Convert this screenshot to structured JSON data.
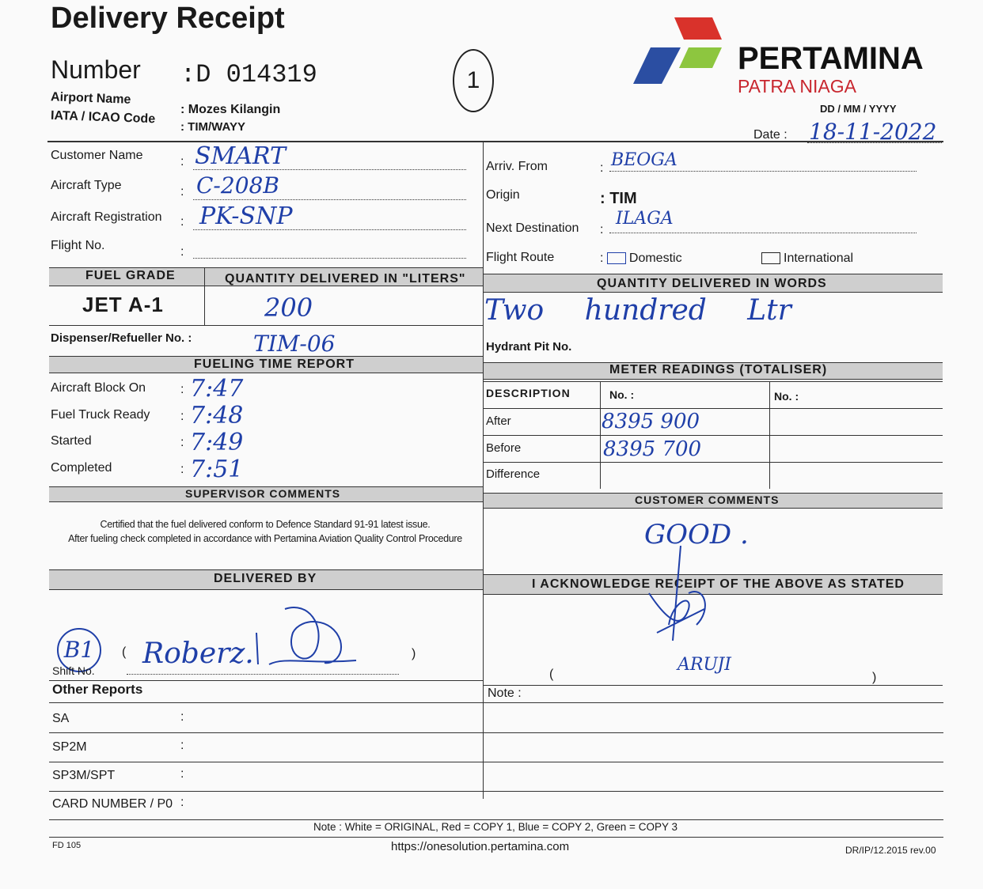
{
  "header": {
    "title": "Delivery Receipt",
    "number_label": "Number",
    "number_value": ":D 014319",
    "circled_mark": "1",
    "airport_label": "Airport Name",
    "airport_value": ": Mozes Kilangin",
    "iata_label": "IATA / ICAO Code",
    "iata_value": ": TIM/WAYY",
    "logo_text": "PERTAMINA",
    "logo_sub": "PATRA NIAGA",
    "logo_colors": [
      "#d9322b",
      "#2b4ea2",
      "#8dc63f"
    ],
    "date_format": "DD  /  MM  /  YYYY",
    "date_label": "Date  :",
    "date_value": "18-11-2022"
  },
  "left_info": [
    {
      "label": "Customer Name",
      "value": "SMART"
    },
    {
      "label": "Aircraft Type",
      "value": "C-208B"
    },
    {
      "label": "Aircraft  Registration",
      "value": "PK-SNP"
    },
    {
      "label": "Flight No.",
      "value": ""
    }
  ],
  "right_info": [
    {
      "label": "Arriv. From",
      "value": "BEOGA"
    },
    {
      "label": "Origin",
      "value": "TIM"
    },
    {
      "label": "Next Destination",
      "value": "ILAGA"
    },
    {
      "label": "Flight  Route",
      "domestic": "Domestic",
      "international": "International",
      "selected": "Domestic"
    }
  ],
  "fuel": {
    "grade_header": "FUEL GRADE",
    "qty_header": "QUANTITY DELIVERED IN \"LITERS\"",
    "words_header": "QUANTITY DELIVERED IN WORDS",
    "grade": "JET A-1",
    "qty": "200",
    "words": "Two  hundred  Ltr",
    "dispenser_label": "Dispenser/Refueller No.  :",
    "dispenser_value": "TIM-06",
    "hydrant_label": "Hydrant Pit No."
  },
  "time_report": {
    "title": "FUELING TIME REPORT",
    "rows": [
      {
        "label": "Aircraft Block On",
        "value": "7:47"
      },
      {
        "label": "Fuel Truck Ready",
        "value": "7:48"
      },
      {
        "label": "Started",
        "value": "7:49"
      },
      {
        "label": "Completed",
        "value": "7:51"
      }
    ]
  },
  "meter": {
    "title": "METER READINGS (TOTALISER)",
    "headers": [
      "DESCRIPTION",
      "No. :",
      "No. :"
    ],
    "rows": [
      {
        "label": "After",
        "value": "8395 900"
      },
      {
        "label": "Before",
        "value": "8395 700"
      },
      {
        "label": "Difference",
        "value": ""
      }
    ]
  },
  "comments": {
    "supervisor_title": "SUPERVISOR  COMMENTS",
    "supervisor_line1": "Certified that the fuel delivered conform to Defence Standard 91-91 latest issue.",
    "supervisor_line2": "After fueling check completed in accordance with Pertamina Aviation Quality Control Procedure",
    "customer_title": "CUSTOMER  COMMENTS",
    "customer_value": "GOOD ."
  },
  "signatures": {
    "delivered_title": "DELIVERED  BY",
    "ack_title": "I ACKNOWLEDGE RECEIPT OF THE ABOVE AS STATED",
    "shift_label": "Shift No.",
    "shift_value": "B1",
    "deliverer_name": "Roberz.",
    "ack_name": "ARUJI",
    "open_paren": "(",
    "close_paren": ")"
  },
  "other_reports": {
    "title": "Other Reports",
    "note_label": "Note :",
    "rows": [
      "SA",
      "SP2M",
      "SP3M/SPT",
      "CARD NUMBER / P0"
    ]
  },
  "footer": {
    "note": "Note :   White = ORIGINAL, Red = COPY 1,  Blue = COPY 2,  Green = COPY 3",
    "url": "https://onesolution.pertamina.com",
    "form_code": "FD 105",
    "revision": "DR/IP/12.2015 rev.00"
  }
}
